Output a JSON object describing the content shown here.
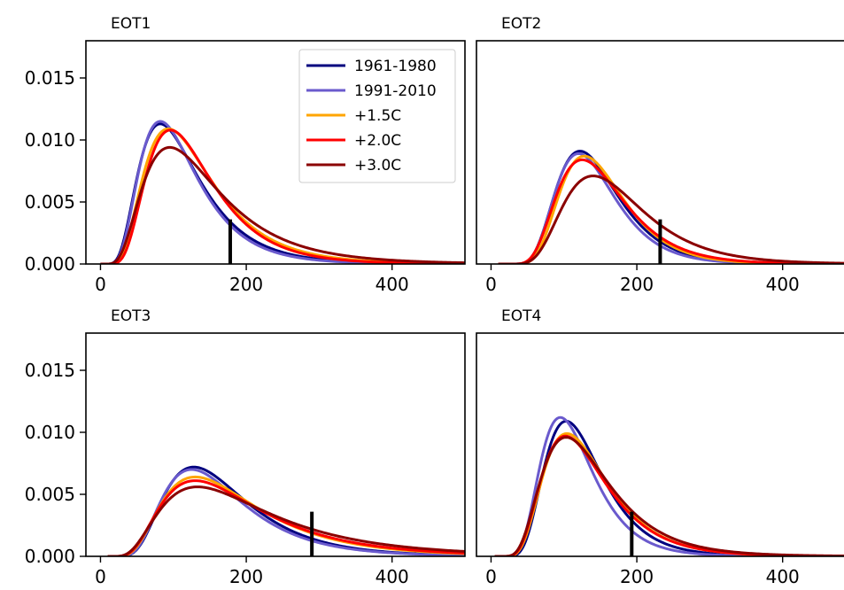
{
  "chart_data": [
    {
      "type": "line",
      "title": "EOT1",
      "xlim": [
        -20,
        500
      ],
      "ylim": [
        0,
        0.018
      ],
      "xticks": [
        "0",
        "200",
        "400"
      ],
      "yticks": [
        "0.000",
        "0.005",
        "0.010",
        "0.015"
      ],
      "threshold_x": 178,
      "threshold_top": 0.0036,
      "legend": {
        "location": "top-right"
      },
      "series": [
        {
          "name": "1961-1980",
          "color": "#00007f",
          "start": 0,
          "peak_x": 82,
          "peak_y": 0.0113,
          "width": 0.5
        },
        {
          "name": "1991-2010",
          "color": "#6a5acd",
          "start": 0,
          "peak_x": 82,
          "peak_y": 0.0115,
          "width": 0.48
        },
        {
          "name": "+1.5C",
          "color": "#ffa500",
          "start": 0,
          "peak_x": 93,
          "peak_y": 0.0109,
          "width": 0.5
        },
        {
          "name": "+2.0C",
          "color": "#ff0000",
          "start": 0,
          "peak_x": 96,
          "peak_y": 0.0108,
          "width": 0.47
        },
        {
          "name": "+3.0C",
          "color": "#8b0000",
          "start": 0,
          "peak_x": 95,
          "peak_y": 0.0094,
          "width": 0.55
        }
      ]
    },
    {
      "type": "line",
      "title": "EOT2",
      "xlim": [
        -20,
        500
      ],
      "ylim": [
        0,
        0.018
      ],
      "xticks": [
        "0",
        "200",
        "400"
      ],
      "yticks": [],
      "threshold_x": 232,
      "threshold_top": 0.0036,
      "series": [
        {
          "name": "1961-1980",
          "color": "#00007f",
          "start": 10,
          "peak_x": 122,
          "peak_y": 0.0091,
          "width": 0.38
        },
        {
          "name": "1991-2010",
          "color": "#6a5acd",
          "start": 10,
          "peak_x": 120,
          "peak_y": 0.0089,
          "width": 0.37
        },
        {
          "name": "+1.5C",
          "color": "#ffa500",
          "start": 10,
          "peak_x": 128,
          "peak_y": 0.0087,
          "width": 0.37
        },
        {
          "name": "+2.0C",
          "color": "#ff0000",
          "start": 10,
          "peak_x": 125,
          "peak_y": 0.0084,
          "width": 0.4
        },
        {
          "name": "+3.0C",
          "color": "#8b0000",
          "start": 10,
          "peak_x": 140,
          "peak_y": 0.0071,
          "width": 0.42
        }
      ]
    },
    {
      "type": "line",
      "title": "EOT3",
      "xlim": [
        -20,
        500
      ],
      "ylim": [
        0,
        0.018
      ],
      "xticks": [
        "0",
        "200",
        "400"
      ],
      "yticks": [
        "0.000",
        "0.005",
        "0.010",
        "0.015"
      ],
      "threshold_x": 290,
      "threshold_top": 0.0036,
      "series": [
        {
          "name": "1961-1980",
          "color": "#00007f",
          "start": 10,
          "peak_x": 128,
          "peak_y": 0.0072,
          "width": 0.48
        },
        {
          "name": "1991-2010",
          "color": "#6a5acd",
          "start": 10,
          "peak_x": 125,
          "peak_y": 0.007,
          "width": 0.48
        },
        {
          "name": "+1.5C",
          "color": "#ffa500",
          "start": 10,
          "peak_x": 130,
          "peak_y": 0.0064,
          "width": 0.54
        },
        {
          "name": "+2.0C",
          "color": "#ff0000",
          "start": 10,
          "peak_x": 130,
          "peak_y": 0.0061,
          "width": 0.56
        },
        {
          "name": "+3.0C",
          "color": "#8b0000",
          "start": 10,
          "peak_x": 133,
          "peak_y": 0.0056,
          "width": 0.6
        }
      ]
    },
    {
      "type": "line",
      "title": "EOT4",
      "xlim": [
        -20,
        500
      ],
      "ylim": [
        0,
        0.018
      ],
      "xticks": [
        "0",
        "200",
        "400"
      ],
      "yticks": [],
      "threshold_x": 193,
      "threshold_top": 0.0036,
      "series": [
        {
          "name": "1961-1980",
          "color": "#00007f",
          "start": 5,
          "peak_x": 103,
          "peak_y": 0.0109,
          "width": 0.4
        },
        {
          "name": "1991-2010",
          "color": "#6a5acd",
          "start": 5,
          "peak_x": 95,
          "peak_y": 0.0112,
          "width": 0.4
        },
        {
          "name": "+1.5C",
          "color": "#ffa500",
          "start": 5,
          "peak_x": 104,
          "peak_y": 0.0099,
          "width": 0.44
        },
        {
          "name": "+2.0C",
          "color": "#ff0000",
          "start": 5,
          "peak_x": 102,
          "peak_y": 0.0097,
          "width": 0.45
        },
        {
          "name": "+3.0C",
          "color": "#8b0000",
          "start": 5,
          "peak_x": 103,
          "peak_y": 0.0096,
          "width": 0.47
        }
      ]
    }
  ]
}
